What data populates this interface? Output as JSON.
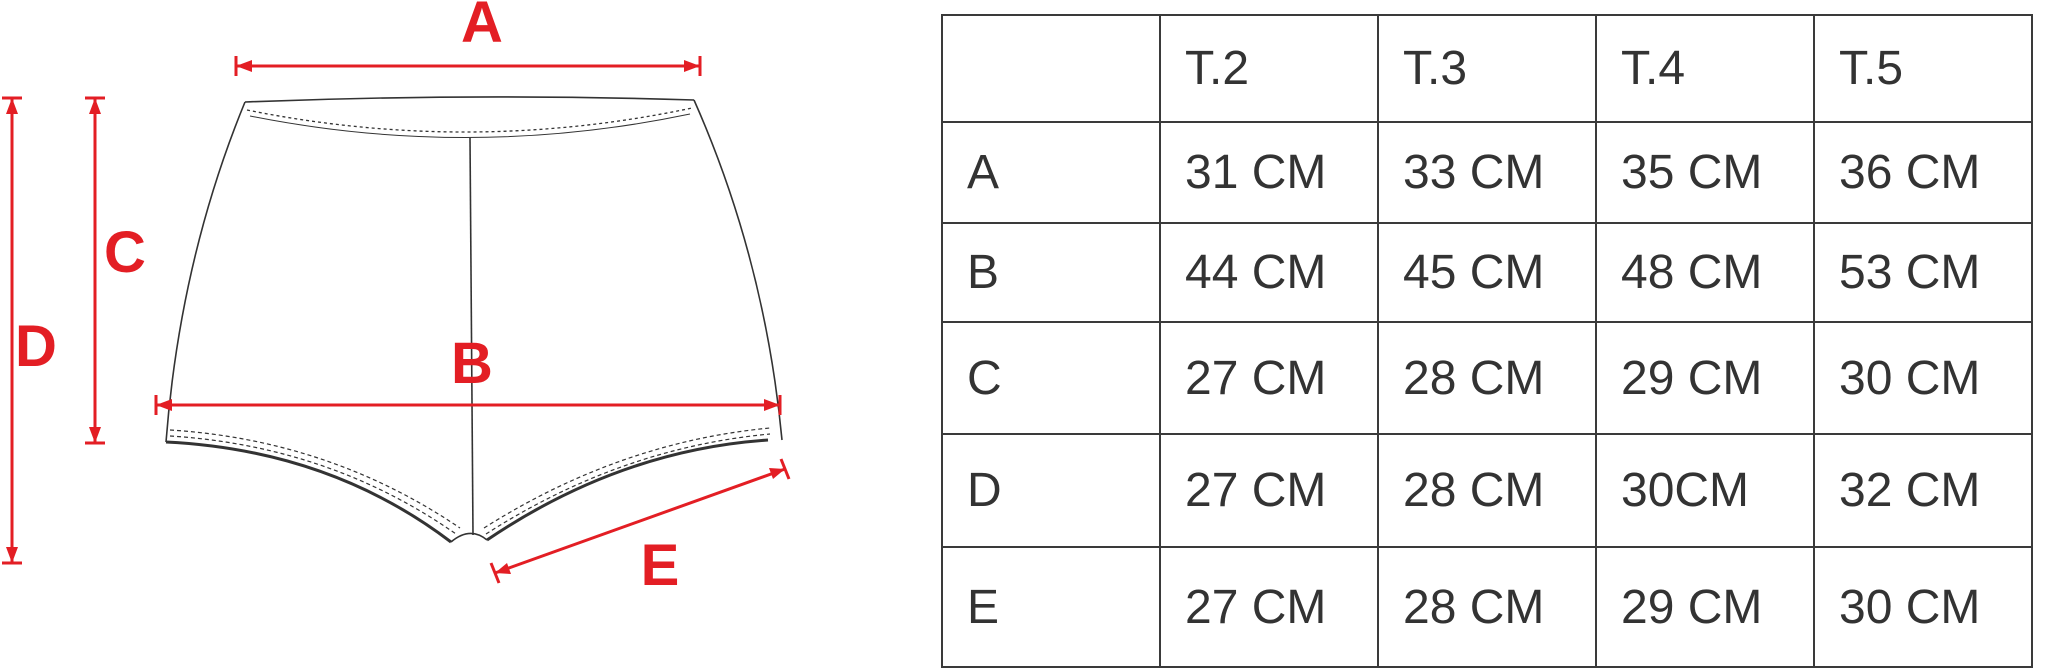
{
  "diagram": {
    "labels": {
      "a": "A",
      "b": "B",
      "c": "C",
      "d": "D",
      "e": "E"
    }
  },
  "table": {
    "headers": [
      "",
      "T.2",
      "T.3",
      "T.4",
      "T.5"
    ],
    "rows": [
      {
        "label": "A",
        "values": [
          "31 CM",
          "33 CM",
          "35 CM",
          "36 CM"
        ]
      },
      {
        "label": "B",
        "values": [
          "44 CM",
          "45 CM",
          "48 CM",
          "53 CM"
        ]
      },
      {
        "label": "C",
        "values": [
          "27 CM",
          "28 CM",
          "29 CM",
          "30 CM"
        ]
      },
      {
        "label": "D",
        "values": [
          "27 CM",
          "28 CM",
          "30CM",
          "32 CM"
        ]
      },
      {
        "label": "E",
        "values": [
          "27 CM",
          "28 CM",
          "29 CM",
          "30 CM"
        ]
      }
    ]
  },
  "colors": {
    "accent": "#e31e24",
    "line": "#333333",
    "grid": "#3a3a3a"
  }
}
